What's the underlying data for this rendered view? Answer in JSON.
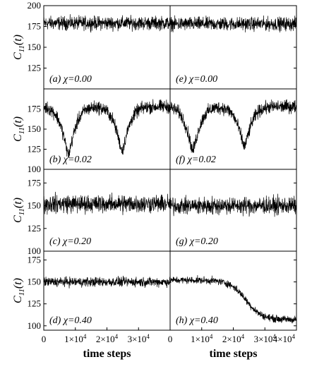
{
  "chart_data": {
    "type": "line",
    "layout": "4 rows x 2 columns, shared axes",
    "xlabel": "time steps",
    "ylabel_main": "C",
    "ylabel_sub": "11",
    "ylabel_arg": "(t)",
    "xlim": [
      0,
      40000
    ],
    "x_ticks": [
      {
        "value": 0,
        "mantissa": "0",
        "exp": ""
      },
      {
        "value": 10000,
        "mantissa": "1×10",
        "exp": "4"
      },
      {
        "value": 20000,
        "mantissa": "2×10",
        "exp": "4"
      },
      {
        "value": 30000,
        "mantissa": "3×10",
        "exp": "4"
      }
    ],
    "x_ticks_last": {
      "value": 40000,
      "mantissa": "4×10",
      "exp": "4"
    },
    "panels": [
      {
        "id": "a",
        "row": 0,
        "col": 0,
        "label": "(a) χ=0.00",
        "ylim": [
          100,
          200
        ],
        "ytick_labels": [
          "200",
          "175",
          "150",
          "125"
        ],
        "series": {
          "shape": "flat",
          "center": 179,
          "noise": 12
        }
      },
      {
        "id": "e",
        "row": 0,
        "col": 1,
        "label": "(e) χ=0.00",
        "ylim": [
          100,
          200
        ],
        "series": {
          "shape": "flat",
          "center": 178,
          "noise": 12
        }
      },
      {
        "id": "b",
        "row": 1,
        "col": 0,
        "label": "(b) χ=0.02",
        "ylim": [
          100,
          200
        ],
        "ytick_labels": [
          "175",
          "150",
          "125",
          "100"
        ],
        "series": {
          "shape": "dips",
          "center": 178,
          "noise": 12,
          "dips": [
            {
              "x": 7800,
              "depth": 60,
              "width": 2600
            },
            {
              "x": 24800,
              "depth": 55,
              "width": 2600
            }
          ]
        }
      },
      {
        "id": "f",
        "row": 1,
        "col": 1,
        "label": "(f) χ=0.02",
        "ylim": [
          100,
          200
        ],
        "series": {
          "shape": "dips",
          "center": 178,
          "noise": 12,
          "dips": [
            {
              "x": 7200,
              "depth": 55,
              "width": 2600
            },
            {
              "x": 23500,
              "depth": 50,
              "width": 2600
            }
          ]
        }
      },
      {
        "id": "c",
        "row": 2,
        "col": 0,
        "label": "(c) χ=0.20",
        "ylim": [
          100,
          190
        ],
        "ytick_labels": [
          "175",
          "150",
          "125",
          "100"
        ],
        "series": {
          "shape": "rough",
          "center": 152,
          "noise": 14
        }
      },
      {
        "id": "g",
        "row": 2,
        "col": 1,
        "label": "(g) χ=0.20",
        "ylim": [
          100,
          190
        ],
        "series": {
          "shape": "rough",
          "center": 150,
          "noise": 13
        }
      },
      {
        "id": "d",
        "row": 3,
        "col": 0,
        "label": "(d) χ=0.40",
        "ylim": [
          95,
          185
        ],
        "ytick_labels": [
          "175",
          "150",
          "125",
          "100"
        ],
        "series": {
          "shape": "slope",
          "start": 150,
          "end": 150,
          "noise": 8
        }
      },
      {
        "id": "h",
        "row": 3,
        "col": 1,
        "label": "(h) χ=0.40",
        "ylim": [
          95,
          185
        ],
        "series": {
          "shape": "sigmoid",
          "start": 152,
          "end": 107,
          "mid": 24000,
          "noise": 6
        }
      }
    ]
  }
}
